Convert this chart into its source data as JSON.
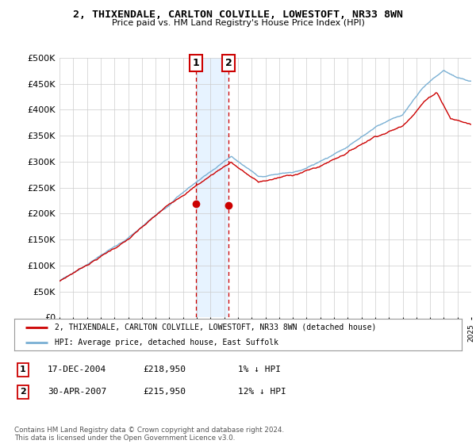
{
  "title": "2, THIXENDALE, CARLTON COLVILLE, LOWESTOFT, NR33 8WN",
  "subtitle": "Price paid vs. HM Land Registry's House Price Index (HPI)",
  "sale1_date": 2004.96,
  "sale1_price": 218950,
  "sale1_label": "1",
  "sale2_date": 2007.33,
  "sale2_price": 215950,
  "sale2_label": "2",
  "legend_red": "2, THIXENDALE, CARLTON COLVILLE, LOWESTOFT, NR33 8WN (detached house)",
  "legend_blue": "HPI: Average price, detached house, East Suffolk",
  "table_rows": [
    {
      "num": "1",
      "date": "17-DEC-2004",
      "price": "£218,950",
      "hpi": "1% ↓ HPI"
    },
    {
      "num": "2",
      "date": "30-APR-2007",
      "price": "£215,950",
      "hpi": "12% ↓ HPI"
    }
  ],
  "footnote": "Contains HM Land Registry data © Crown copyright and database right 2024.\nThis data is licensed under the Open Government Licence v3.0.",
  "ylim": [
    0,
    500000
  ],
  "xlim": [
    1995,
    2025
  ],
  "background": "#ffffff",
  "grid_color": "#cccccc",
  "red_color": "#cc0000",
  "blue_color": "#7ab0d4",
  "shade_color": "#ddeeff"
}
